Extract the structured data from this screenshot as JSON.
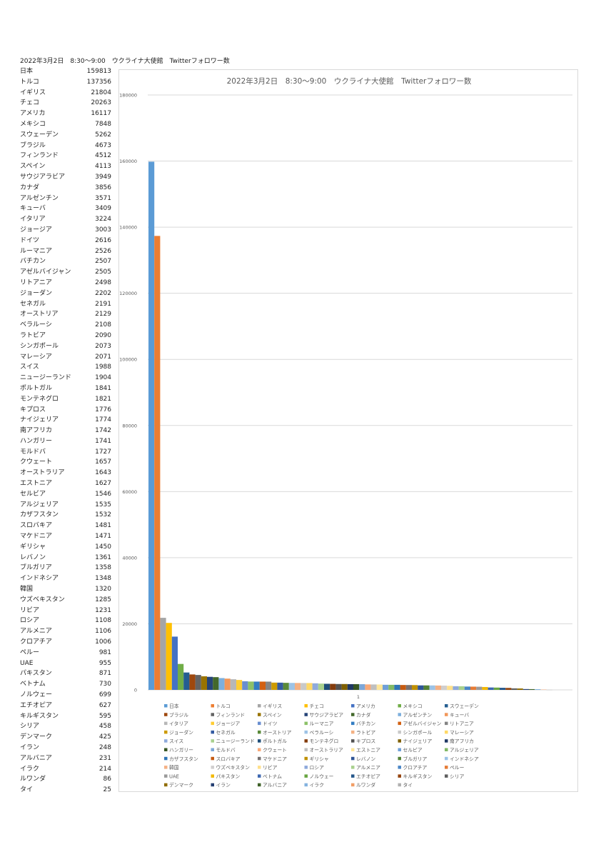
{
  "sheet": {
    "title": "2022年3月2日　8:30～9:00　ウクライナ大使館　Twitterフォロワー数"
  },
  "chart_data": {
    "type": "bar",
    "title": "2022年3月2日　8:30～9:00　ウクライナ大使館　Twitterフォロワー数",
    "xlabel": "",
    "ylabel": "",
    "categories": [
      "1"
    ],
    "ylim": [
      0,
      180000
    ],
    "yticks": [
      0,
      20000,
      40000,
      60000,
      80000,
      100000,
      120000,
      140000,
      160000,
      180000
    ],
    "grid": true,
    "legend_position": "bottom",
    "series": [
      {
        "name": "日本",
        "value": 159813,
        "color": "#5b9bd5"
      },
      {
        "name": "トルコ",
        "value": 137356,
        "color": "#ed7d31"
      },
      {
        "name": "イギリス",
        "value": 21804,
        "color": "#a5a5a5"
      },
      {
        "name": "チェコ",
        "value": 20263,
        "color": "#ffc000"
      },
      {
        "name": "アメリカ",
        "value": 16117,
        "color": "#4472c4"
      },
      {
        "name": "メキシコ",
        "value": 7848,
        "color": "#70ad47"
      },
      {
        "name": "スウェーデン",
        "value": 5262,
        "color": "#255e91"
      },
      {
        "name": "ブラジル",
        "value": 4673,
        "color": "#9e480e"
      },
      {
        "name": "フィンランド",
        "value": 4512,
        "color": "#636363"
      },
      {
        "name": "スペイン",
        "value": 4113,
        "color": "#997300"
      },
      {
        "name": "サウジアラビア",
        "value": 3949,
        "color": "#264478"
      },
      {
        "name": "カナダ",
        "value": 3856,
        "color": "#43682b"
      },
      {
        "name": "アルゼンチン",
        "value": 3571,
        "color": "#7cafdd"
      },
      {
        "name": "キューバ",
        "value": 3409,
        "color": "#f1975a"
      },
      {
        "name": "イタリア",
        "value": 3224,
        "color": "#b7b7b7"
      },
      {
        "name": "ジョージア",
        "value": 3003,
        "color": "#ffcd33"
      },
      {
        "name": "ドイツ",
        "value": 2616,
        "color": "#698ed0"
      },
      {
        "name": "ルーマニア",
        "value": 2526,
        "color": "#8cc168"
      },
      {
        "name": "バチカン",
        "value": 2507,
        "color": "#327dc2"
      },
      {
        "name": "アゼルバイジャン",
        "value": 2505,
        "color": "#d26012"
      },
      {
        "name": "リトアニア",
        "value": 2498,
        "color": "#848484"
      },
      {
        "name": "ジョーダン",
        "value": 2202,
        "color": "#cc9a00"
      },
      {
        "name": "セネガル",
        "value": 2191,
        "color": "#335aa1"
      },
      {
        "name": "オーストリア",
        "value": 2129,
        "color": "#5a8a39"
      },
      {
        "name": "ベラルーシ",
        "value": 2108,
        "color": "#9dc3e6"
      },
      {
        "name": "ラトビア",
        "value": 2090,
        "color": "#f4b183"
      },
      {
        "name": "シンガポール",
        "value": 2073,
        "color": "#c9c9c9"
      },
      {
        "name": "マレーシア",
        "value": 2071,
        "color": "#ffd966"
      },
      {
        "name": "スイス",
        "value": 1988,
        "color": "#8faadc"
      },
      {
        "name": "ニュージーランド",
        "value": 1904,
        "color": "#a9d18e"
      },
      {
        "name": "ポルトガル",
        "value": 1841,
        "color": "#1f4e79"
      },
      {
        "name": "モンテネグロ",
        "value": 1821,
        "color": "#843c0c"
      },
      {
        "name": "キプロス",
        "value": 1776,
        "color": "#525252"
      },
      {
        "name": "ナイジェリア",
        "value": 1774,
        "color": "#7f6000"
      },
      {
        "name": "南アフリカ",
        "value": 1742,
        "color": "#203864"
      },
      {
        "name": "ハンガリー",
        "value": 1741,
        "color": "#375623"
      },
      {
        "name": "モルドバ",
        "value": 1727,
        "color": "#7da7d9"
      },
      {
        "name": "クウェート",
        "value": 1657,
        "color": "#f8a978"
      },
      {
        "name": "オーストラリア",
        "value": 1643,
        "color": "#bfbfbf"
      },
      {
        "name": "エストニア",
        "value": 1627,
        "color": "#ffe699"
      },
      {
        "name": "セルビア",
        "value": 1546,
        "color": "#6f9fd8"
      },
      {
        "name": "アルジェリア",
        "value": 1535,
        "color": "#82b966"
      },
      {
        "name": "カザフスタン",
        "value": 1532,
        "color": "#2e75b6"
      },
      {
        "name": "スロバキア",
        "value": 1481,
        "color": "#c55a11"
      },
      {
        "name": "マケドニア",
        "value": 1471,
        "color": "#767171"
      },
      {
        "name": "ギリシャ",
        "value": 1450,
        "color": "#bf9000"
      },
      {
        "name": "レバノン",
        "value": 1361,
        "color": "#2f5597"
      },
      {
        "name": "ブルガリア",
        "value": 1358,
        "color": "#548235"
      },
      {
        "name": "インドネシア",
        "value": 1348,
        "color": "#9bc2e6"
      },
      {
        "name": "韓国",
        "value": 1320,
        "color": "#f4b084"
      },
      {
        "name": "ウズベキスタン",
        "value": 1285,
        "color": "#d0cece"
      },
      {
        "name": "リビア",
        "value": 1231,
        "color": "#ffe08a"
      },
      {
        "name": "ロシア",
        "value": 1108,
        "color": "#8ea9db"
      },
      {
        "name": "アルメニア",
        "value": 1106,
        "color": "#a8d08d"
      },
      {
        "name": "クロアチア",
        "value": 1006,
        "color": "#4a86c6"
      },
      {
        "name": "ペルー",
        "value": 981,
        "color": "#e57b36"
      },
      {
        "name": "UAE",
        "value": 955,
        "color": "#9a9a9a"
      },
      {
        "name": "パキスタン",
        "value": 871,
        "color": "#f2b800"
      },
      {
        "name": "ベトナム",
        "value": 730,
        "color": "#3d67b1"
      },
      {
        "name": "ノルウェー",
        "value": 699,
        "color": "#68a542"
      },
      {
        "name": "エチオピア",
        "value": 627,
        "color": "#24578a"
      },
      {
        "name": "キルギスタン",
        "value": 595,
        "color": "#95440e"
      },
      {
        "name": "シリア",
        "value": 458,
        "color": "#5e5e5e"
      },
      {
        "name": "デンマーク",
        "value": 425,
        "color": "#906d00"
      },
      {
        "name": "イラン",
        "value": 248,
        "color": "#243f72"
      },
      {
        "name": "アルバニア",
        "value": 231,
        "color": "#3f6229"
      },
      {
        "name": "イラク",
        "value": 214,
        "color": "#84b3df"
      },
      {
        "name": "ルワンダ",
        "value": 86,
        "color": "#f19e66"
      },
      {
        "name": "タイ",
        "value": 25,
        "color": "#b0b0b0"
      }
    ]
  }
}
